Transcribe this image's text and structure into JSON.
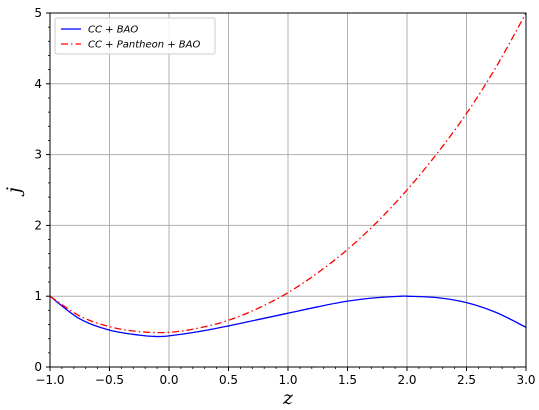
{
  "chart_data": {
    "type": "line",
    "xlabel": "z",
    "ylabel": "j",
    "xlim": [
      -1.0,
      3.0
    ],
    "ylim": [
      0,
      5
    ],
    "x_ticks": [
      -1.0,
      -0.5,
      0.0,
      0.5,
      1.0,
      1.5,
      2.0,
      2.5,
      3.0
    ],
    "x_tick_labels": [
      "−1.0",
      "−0.5",
      "0.0",
      "0.5",
      "1.0",
      "1.5",
      "2.0",
      "2.5",
      "3.0"
    ],
    "y_ticks": [
      0,
      1,
      2,
      3,
      4,
      5
    ],
    "y_tick_labels": [
      "0",
      "1",
      "2",
      "3",
      "4",
      "5"
    ],
    "grid": true,
    "legend_position": "top-left",
    "series": [
      {
        "name": "CC + BAO",
        "color": "#0000ff",
        "linestyle": "solid",
        "x": [
          -1.0,
          -0.75,
          -0.5,
          -0.25,
          -0.1,
          0.0,
          0.25,
          0.5,
          0.75,
          1.0,
          1.25,
          1.5,
          1.75,
          1.95,
          2.0,
          2.25,
          2.5,
          2.75,
          3.0
        ],
        "y": [
          1.0,
          0.68,
          0.52,
          0.45,
          0.43,
          0.44,
          0.5,
          0.58,
          0.67,
          0.76,
          0.85,
          0.93,
          0.98,
          1.0,
          1.0,
          0.98,
          0.91,
          0.77,
          0.56
        ]
      },
      {
        "name": "CC + Pantheon + BAO",
        "color": "#ff0000",
        "linestyle": "dashdot",
        "x": [
          -1.0,
          -0.75,
          -0.5,
          -0.25,
          0.0,
          0.25,
          0.5,
          0.75,
          1.0,
          1.25,
          1.5,
          1.75,
          2.0,
          2.25,
          2.5,
          2.75,
          3.0
        ],
        "y": [
          1.0,
          0.72,
          0.57,
          0.5,
          0.49,
          0.55,
          0.66,
          0.83,
          1.05,
          1.33,
          1.66,
          2.05,
          2.5,
          3.01,
          3.58,
          4.24,
          5.0
        ]
      }
    ]
  }
}
